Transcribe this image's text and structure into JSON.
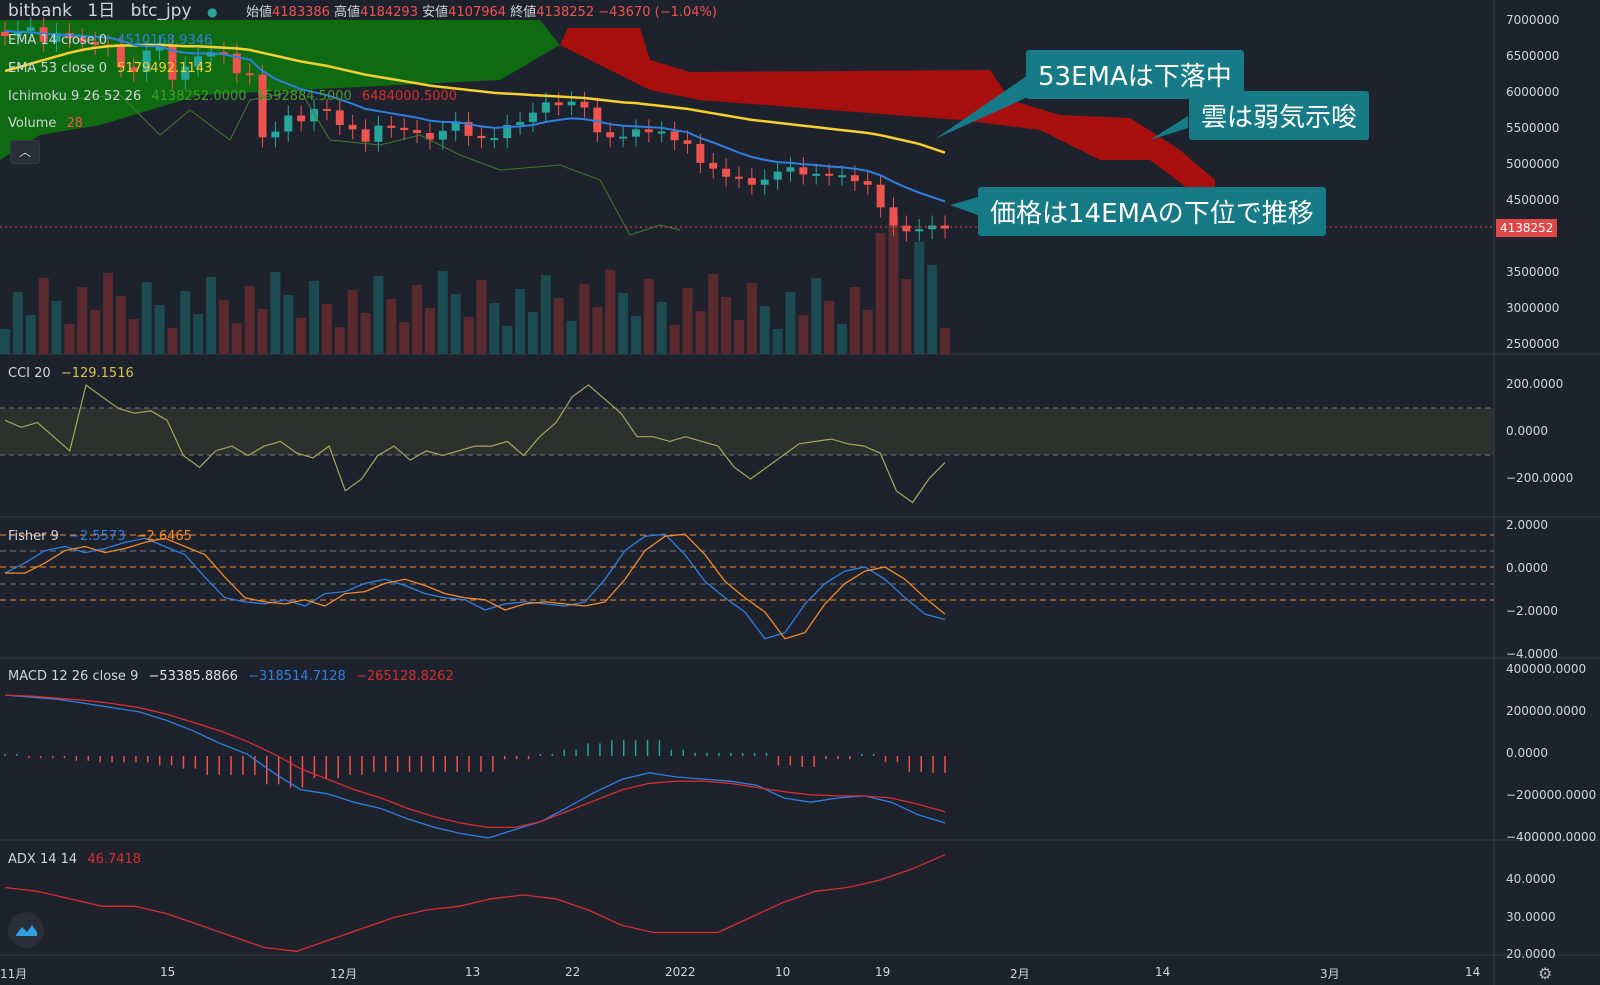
{
  "header": {
    "exchange": "bitbank",
    "interval": "1日",
    "symbol": "btc_jpy",
    "open_label": "始値",
    "open": "4183386",
    "high_label": "高値",
    "high": "4184293",
    "low_label": "安値",
    "low": "4107964",
    "close_label": "終値",
    "close": "4138252",
    "change": "−43670 (−1.04%)"
  },
  "indicators": {
    "ema14": {
      "name": "EMA 14 close 0",
      "value": "4510168.9346"
    },
    "ema53": {
      "name": "EMA 53 close 0",
      "value": "5179492.1143"
    },
    "ichimoku": {
      "name": "Ichimoku 9 26 52 26",
      "v1": "4138252.0000",
      "v2": "5592884.5000",
      "v3": "6484000.5000"
    },
    "volume": {
      "name": "Volume",
      "value": "28"
    },
    "cci": {
      "name": "CCI 20",
      "value": "−129.1516"
    },
    "fisher": {
      "name": "Fisher 9",
      "v1": "−2.5573",
      "v2": "−2.6465"
    },
    "macd": {
      "name": "MACD 12 26 close 9",
      "v1": "−53385.8866",
      "v2": "−318514.7128",
      "v3": "−265128.8262"
    },
    "adx": {
      "name": "ADX 14 14",
      "value": "46.7418"
    }
  },
  "callouts": {
    "c1": "53EMAは下落中",
    "c2": "雲は弱気示唆",
    "c3": "価格は14EMAの下位で推移"
  },
  "price_tag": "4138252",
  "price_axis": [
    "7000000",
    "6500000",
    "6000000",
    "5500000",
    "5000000",
    "4500000",
    "4000000",
    "3500000",
    "3000000",
    "2500000"
  ],
  "cci_axis": [
    "200.0000",
    "0.0000",
    "−200.0000"
  ],
  "fisher_axis": [
    "2.0000",
    "0.0000",
    "−2.0000",
    "−4.0000"
  ],
  "macd_axis": [
    "400000.0000",
    "200000.0000",
    "0.0000",
    "−200000.0000",
    "−400000.0000"
  ],
  "adx_axis": [
    "40.0000",
    "30.0000",
    "20.0000"
  ],
  "time_axis": [
    "11月",
    "15",
    "12月",
    "13",
    "22",
    "2022",
    "10",
    "19",
    "2月",
    "14",
    "3月",
    "14"
  ],
  "colors": {
    "bg": "#1e222d",
    "up": "#26a69a",
    "down": "#ef5350",
    "ema14": "#2f7fe0",
    "ema53": "#f5d130",
    "cloud_bull": "#0f6b12",
    "cloud_bear": "#a80f0f",
    "callout": "#167b86"
  },
  "chart_data": {
    "type": "candlestick",
    "closes": [
      6780000,
      6850000,
      6900000,
      6700000,
      6820000,
      6750000,
      6700000,
      6660000,
      6640000,
      6350000,
      6290000,
      6580000,
      6660000,
      6180000,
      6360000,
      6500000,
      6560000,
      6540000,
      6270000,
      6250000,
      5390000,
      5470000,
      5690000,
      5610000,
      5780000,
      5760000,
      5560000,
      5500000,
      5330000,
      5550000,
      5520000,
      5490000,
      5450000,
      5360000,
      5480000,
      5600000,
      5410000,
      5380000,
      5380000,
      5560000,
      5600000,
      5730000,
      5870000,
      5830000,
      5880000,
      5800000,
      5460000,
      5390000,
      5400000,
      5500000,
      5460000,
      5470000,
      5350000,
      5300000,
      5040000,
      4960000,
      4850000,
      4830000,
      4740000,
      4810000,
      4920000,
      4980000,
      4880000,
      4890000,
      4870000,
      4870000,
      4790000,
      4740000,
      4430000,
      4180000,
      4100000,
      4130000,
      4180000,
      4138252
    ],
    "ema14": [
      6850000,
      6840000,
      6830000,
      6810000,
      6800000,
      6790000,
      6780000,
      6770000,
      6760000,
      6720000,
      6660000,
      6640000,
      6640000,
      6580000,
      6550000,
      6540000,
      6540000,
      6530000,
      6490000,
      6460000,
      6300000,
      6190000,
      6120000,
      6050000,
      6010000,
      5970000,
      5910000,
      5850000,
      5780000,
      5750000,
      5720000,
      5690000,
      5660000,
      5620000,
      5600000,
      5600000,
      5570000,
      5540000,
      5520000,
      5530000,
      5540000,
      5560000,
      5600000,
      5630000,
      5650000,
      5640000,
      5610000,
      5570000,
      5550000,
      5540000,
      5530000,
      5520000,
      5490000,
      5460000,
      5380000,
      5320000,
      5250000,
      5180000,
      5120000,
      5080000,
      5050000,
      5040000,
      5020000,
      5010000,
      4990000,
      4980000,
      4960000,
      4930000,
      4870000,
      4780000,
      4700000,
      4630000,
      4570000,
      4510168
    ],
    "ema53": [
      6300000,
      6350000,
      6400000,
      6450000,
      6500000,
      6550000,
      6590000,
      6620000,
      6640000,
      6650000,
      6650000,
      6660000,
      6660000,
      6650000,
      6640000,
      6640000,
      6630000,
      6620000,
      6610000,
      6590000,
      6550000,
      6510000,
      6470000,
      6430000,
      6400000,
      6370000,
      6330000,
      6290000,
      6250000,
      6220000,
      6190000,
      6160000,
      6130000,
      6100000,
      6080000,
      6060000,
      6040000,
      6020000,
      6000000,
      5990000,
      5980000,
      5970000,
      5960000,
      5950000,
      5940000,
      5930000,
      5910000,
      5890000,
      5870000,
      5860000,
      5840000,
      5820000,
      5800000,
      5780000,
      5750000,
      5720000,
      5690000,
      5660000,
      5630000,
      5610000,
      5590000,
      5570000,
      5550000,
      5530000,
      5510000,
      5490000,
      5470000,
      5450000,
      5420000,
      5380000,
      5340000,
      5300000,
      5240000,
      5179492
    ],
    "cci": [
      50,
      20,
      40,
      -20,
      -80,
      200,
      150,
      100,
      80,
      90,
      50,
      -100,
      -150,
      -80,
      -60,
      -100,
      -60,
      -40,
      -90,
      -110,
      -60,
      -250,
      -200,
      -100,
      -60,
      -120,
      -80,
      -100,
      -80,
      -60,
      -60,
      -40,
      -100,
      -20,
      40,
      150,
      200,
      140,
      80,
      -20,
      -20,
      -40,
      -20,
      -40,
      -60,
      -150,
      -200,
      -150,
      -100,
      -50,
      -40,
      -30,
      -50,
      -60,
      -90,
      -250,
      -300,
      -200,
      -130
    ],
    "fisher": [
      -0.3,
      0.2,
      0.8,
      1.0,
      0.7,
      0.9,
      1.2,
      1.4,
      1.0,
      0.6,
      -0.5,
      -1.5,
      -1.7,
      -1.8,
      -1.6,
      -1.9,
      -1.3,
      -1.2,
      -0.8,
      -0.6,
      -0.9,
      -1.3,
      -1.5,
      -1.6,
      -2.1,
      -1.8,
      -1.7,
      -1.8,
      -1.9,
      -1.7,
      -0.6,
      0.8,
      1.5,
      1.6,
      0.6,
      -0.7,
      -1.5,
      -2.2,
      -3.5,
      -3.2,
      -1.8,
      -0.8,
      -0.2,
      0.0,
      -0.6,
      -1.5,
      -2.3,
      -2.56
    ],
    "macd_line": [
      290000,
      280000,
      270000,
      250000,
      230000,
      210000,
      170000,
      120000,
      60000,
      10000,
      -80000,
      -160000,
      -180000,
      -220000,
      -250000,
      -300000,
      -340000,
      -370000,
      -390000,
      -350000,
      -310000,
      -240000,
      -170000,
      -110000,
      -80000,
      -100000,
      -110000,
      -120000,
      -140000,
      -200000,
      -220000,
      -200000,
      -190000,
      -220000,
      -280000,
      -318514
    ],
    "signal_line": [
      290000,
      285000,
      275000,
      265000,
      250000,
      230000,
      200000,
      160000,
      120000,
      70000,
      10000,
      -60000,
      -110000,
      -160000,
      -200000,
      -250000,
      -290000,
      -320000,
      -340000,
      -340000,
      -310000,
      -260000,
      -210000,
      -160000,
      -130000,
      -120000,
      -120000,
      -130000,
      -150000,
      -170000,
      -185000,
      -190000,
      -190000,
      -200000,
      -230000,
      -265128
    ],
    "adx": [
      38,
      37,
      35,
      33,
      33,
      31,
      28,
      25,
      22,
      21,
      24,
      27,
      30,
      32,
      33,
      35,
      36,
      35,
      32,
      28,
      26,
      26,
      26,
      30,
      34,
      37,
      38,
      40,
      43,
      46.74
    ]
  }
}
